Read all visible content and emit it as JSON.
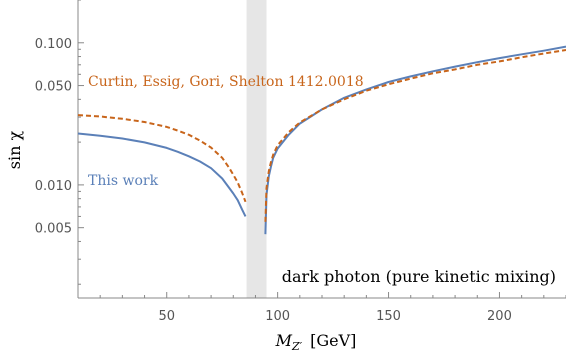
{
  "chart_data": {
    "type": "line",
    "xlabel": "M_{Z'}  [GeV]",
    "xlabel_main": "M",
    "xlabel_sub": "Z′",
    "xlabel_unit": "[GeV]",
    "ylabel": "sin χ",
    "y_scale": "log",
    "xlim": [
      10,
      230
    ],
    "ylim": [
      0.0016,
      0.2
    ],
    "x_ticks": [
      50,
      100,
      150,
      200
    ],
    "x_tick_labels": [
      "50",
      "100",
      "150",
      "200"
    ],
    "y_ticks": [
      0.005,
      0.01,
      0.05,
      0.1
    ],
    "y_tick_labels": [
      "0.005",
      "0.010",
      "0.050",
      "0.100"
    ],
    "shaded_band": {
      "x_range": [
        86,
        95
      ],
      "color": "#e6e6e6"
    },
    "annotation": "dark photon (pure kinetic mixing)",
    "series": [
      {
        "name": "This work",
        "color": "#5b80b8",
        "style": "solid",
        "x": [
          10,
          20,
          30,
          40,
          50,
          55,
          60,
          65,
          70,
          75,
          78,
          80,
          82,
          84,
          85.5,
          94.5,
          95,
          96,
          97,
          98,
          100,
          105,
          110,
          120,
          130,
          140,
          150,
          160,
          170,
          180,
          190,
          200,
          210,
          220,
          230
        ],
        "y": [
          0.023,
          0.0222,
          0.0212,
          0.0199,
          0.0182,
          0.0171,
          0.0159,
          0.0146,
          0.0131,
          0.0111,
          0.0096,
          0.0087,
          0.0078,
          0.0067,
          0.006,
          0.0045,
          0.0085,
          0.0115,
          0.0135,
          0.0155,
          0.018,
          0.0225,
          0.027,
          0.034,
          0.041,
          0.047,
          0.053,
          0.058,
          0.063,
          0.068,
          0.073,
          0.078,
          0.083,
          0.088,
          0.094
        ]
      },
      {
        "name": "Curtin, Essig, Gori, Shelton 1412.0018",
        "color": "#c8651b",
        "style": "dashed",
        "x": [
          10,
          20,
          30,
          40,
          50,
          55,
          60,
          65,
          70,
          75,
          78,
          80,
          82,
          84,
          85.5,
          94.5,
          95,
          96,
          97,
          98,
          100,
          105,
          110,
          120,
          130,
          140,
          150,
          160,
          170,
          180,
          190,
          200,
          210,
          220,
          230
        ],
        "y": [
          0.031,
          0.0303,
          0.0292,
          0.0277,
          0.0256,
          0.0241,
          0.0225,
          0.0205,
          0.0183,
          0.0155,
          0.0133,
          0.0118,
          0.0104,
          0.0088,
          0.0076,
          0.0055,
          0.0095,
          0.0125,
          0.0145,
          0.0163,
          0.019,
          0.0235,
          0.0275,
          0.034,
          0.04,
          0.046,
          0.051,
          0.056,
          0.061,
          0.065,
          0.07,
          0.074,
          0.079,
          0.084,
          0.089
        ]
      }
    ]
  }
}
